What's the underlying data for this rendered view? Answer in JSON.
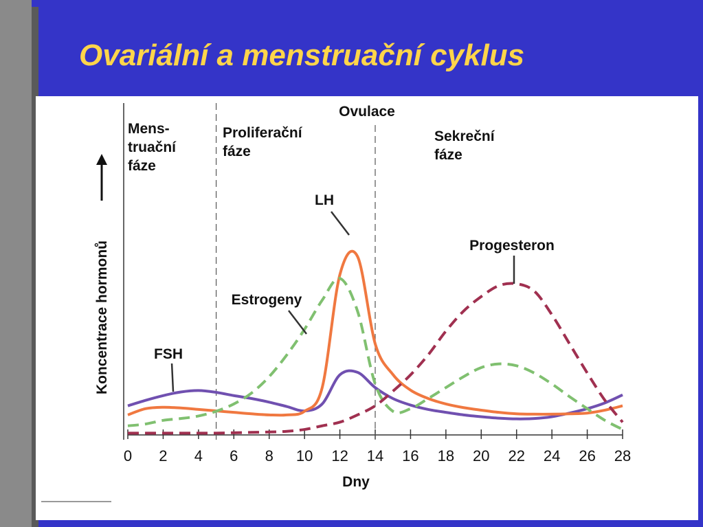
{
  "title": "Ovariální a menstruační cyklus",
  "chart_data": {
    "type": "line",
    "x_label": "Dny",
    "y_label": "Koncentrace hormonů",
    "x": [
      0,
      1,
      2,
      3,
      4,
      5,
      6,
      7,
      8,
      9,
      10,
      11,
      12,
      13,
      14,
      15,
      16,
      17,
      18,
      19,
      20,
      21,
      22,
      23,
      24,
      25,
      26,
      27,
      28
    ],
    "xlim": [
      0,
      28
    ],
    "xticks": [
      0,
      2,
      4,
      6,
      8,
      10,
      12,
      14,
      16,
      18,
      20,
      22,
      24,
      26,
      28
    ],
    "ylim": [
      0,
      9
    ],
    "phase_boundaries": [
      5,
      14
    ],
    "annotations": {
      "menstrual_phase": [
        "Mens-",
        "truační",
        "fáze"
      ],
      "proliferative_phase": [
        "Proliferační",
        "fáze"
      ],
      "ovulation": "Ovulace",
      "secretory_phase": [
        "Sekreční",
        "fáze"
      ]
    },
    "series": [
      {
        "name": "FSH",
        "color": "#7050b0",
        "dashed": false,
        "values": [
          0.8,
          0.95,
          1.08,
          1.18,
          1.22,
          1.17,
          1.08,
          1.0,
          0.9,
          0.78,
          0.66,
          0.85,
          1.65,
          1.72,
          1.3,
          1.0,
          0.82,
          0.7,
          0.62,
          0.55,
          0.5,
          0.46,
          0.44,
          0.45,
          0.5,
          0.6,
          0.72,
          0.88,
          1.1
        ]
      },
      {
        "name": "LH",
        "color": "#f07840",
        "dashed": false,
        "values": [
          0.55,
          0.72,
          0.76,
          0.74,
          0.7,
          0.66,
          0.62,
          0.58,
          0.55,
          0.55,
          0.65,
          1.3,
          4.4,
          4.9,
          2.5,
          1.66,
          1.23,
          1.0,
          0.85,
          0.75,
          0.68,
          0.62,
          0.58,
          0.57,
          0.57,
          0.58,
          0.6,
          0.68,
          0.8
        ]
      },
      {
        "name": "Estrogeny",
        "color": "#80c070",
        "dashed": true,
        "values": [
          0.25,
          0.3,
          0.4,
          0.45,
          0.52,
          0.65,
          0.85,
          1.15,
          1.6,
          2.2,
          2.9,
          3.7,
          4.3,
          3.4,
          1.4,
          0.65,
          0.72,
          1.0,
          1.3,
          1.6,
          1.85,
          1.95,
          1.9,
          1.7,
          1.4,
          1.05,
          0.72,
          0.4,
          0.15
        ]
      },
      {
        "name": "Progesteron",
        "color": "#a03050",
        "dashed": true,
        "values": [
          0.05,
          0.05,
          0.05,
          0.05,
          0.05,
          0.05,
          0.06,
          0.07,
          0.08,
          0.1,
          0.15,
          0.25,
          0.35,
          0.55,
          0.8,
          1.2,
          1.65,
          2.2,
          2.85,
          3.4,
          3.8,
          4.1,
          4.15,
          3.95,
          3.3,
          2.5,
          1.7,
          0.95,
          0.35
        ]
      }
    ]
  }
}
